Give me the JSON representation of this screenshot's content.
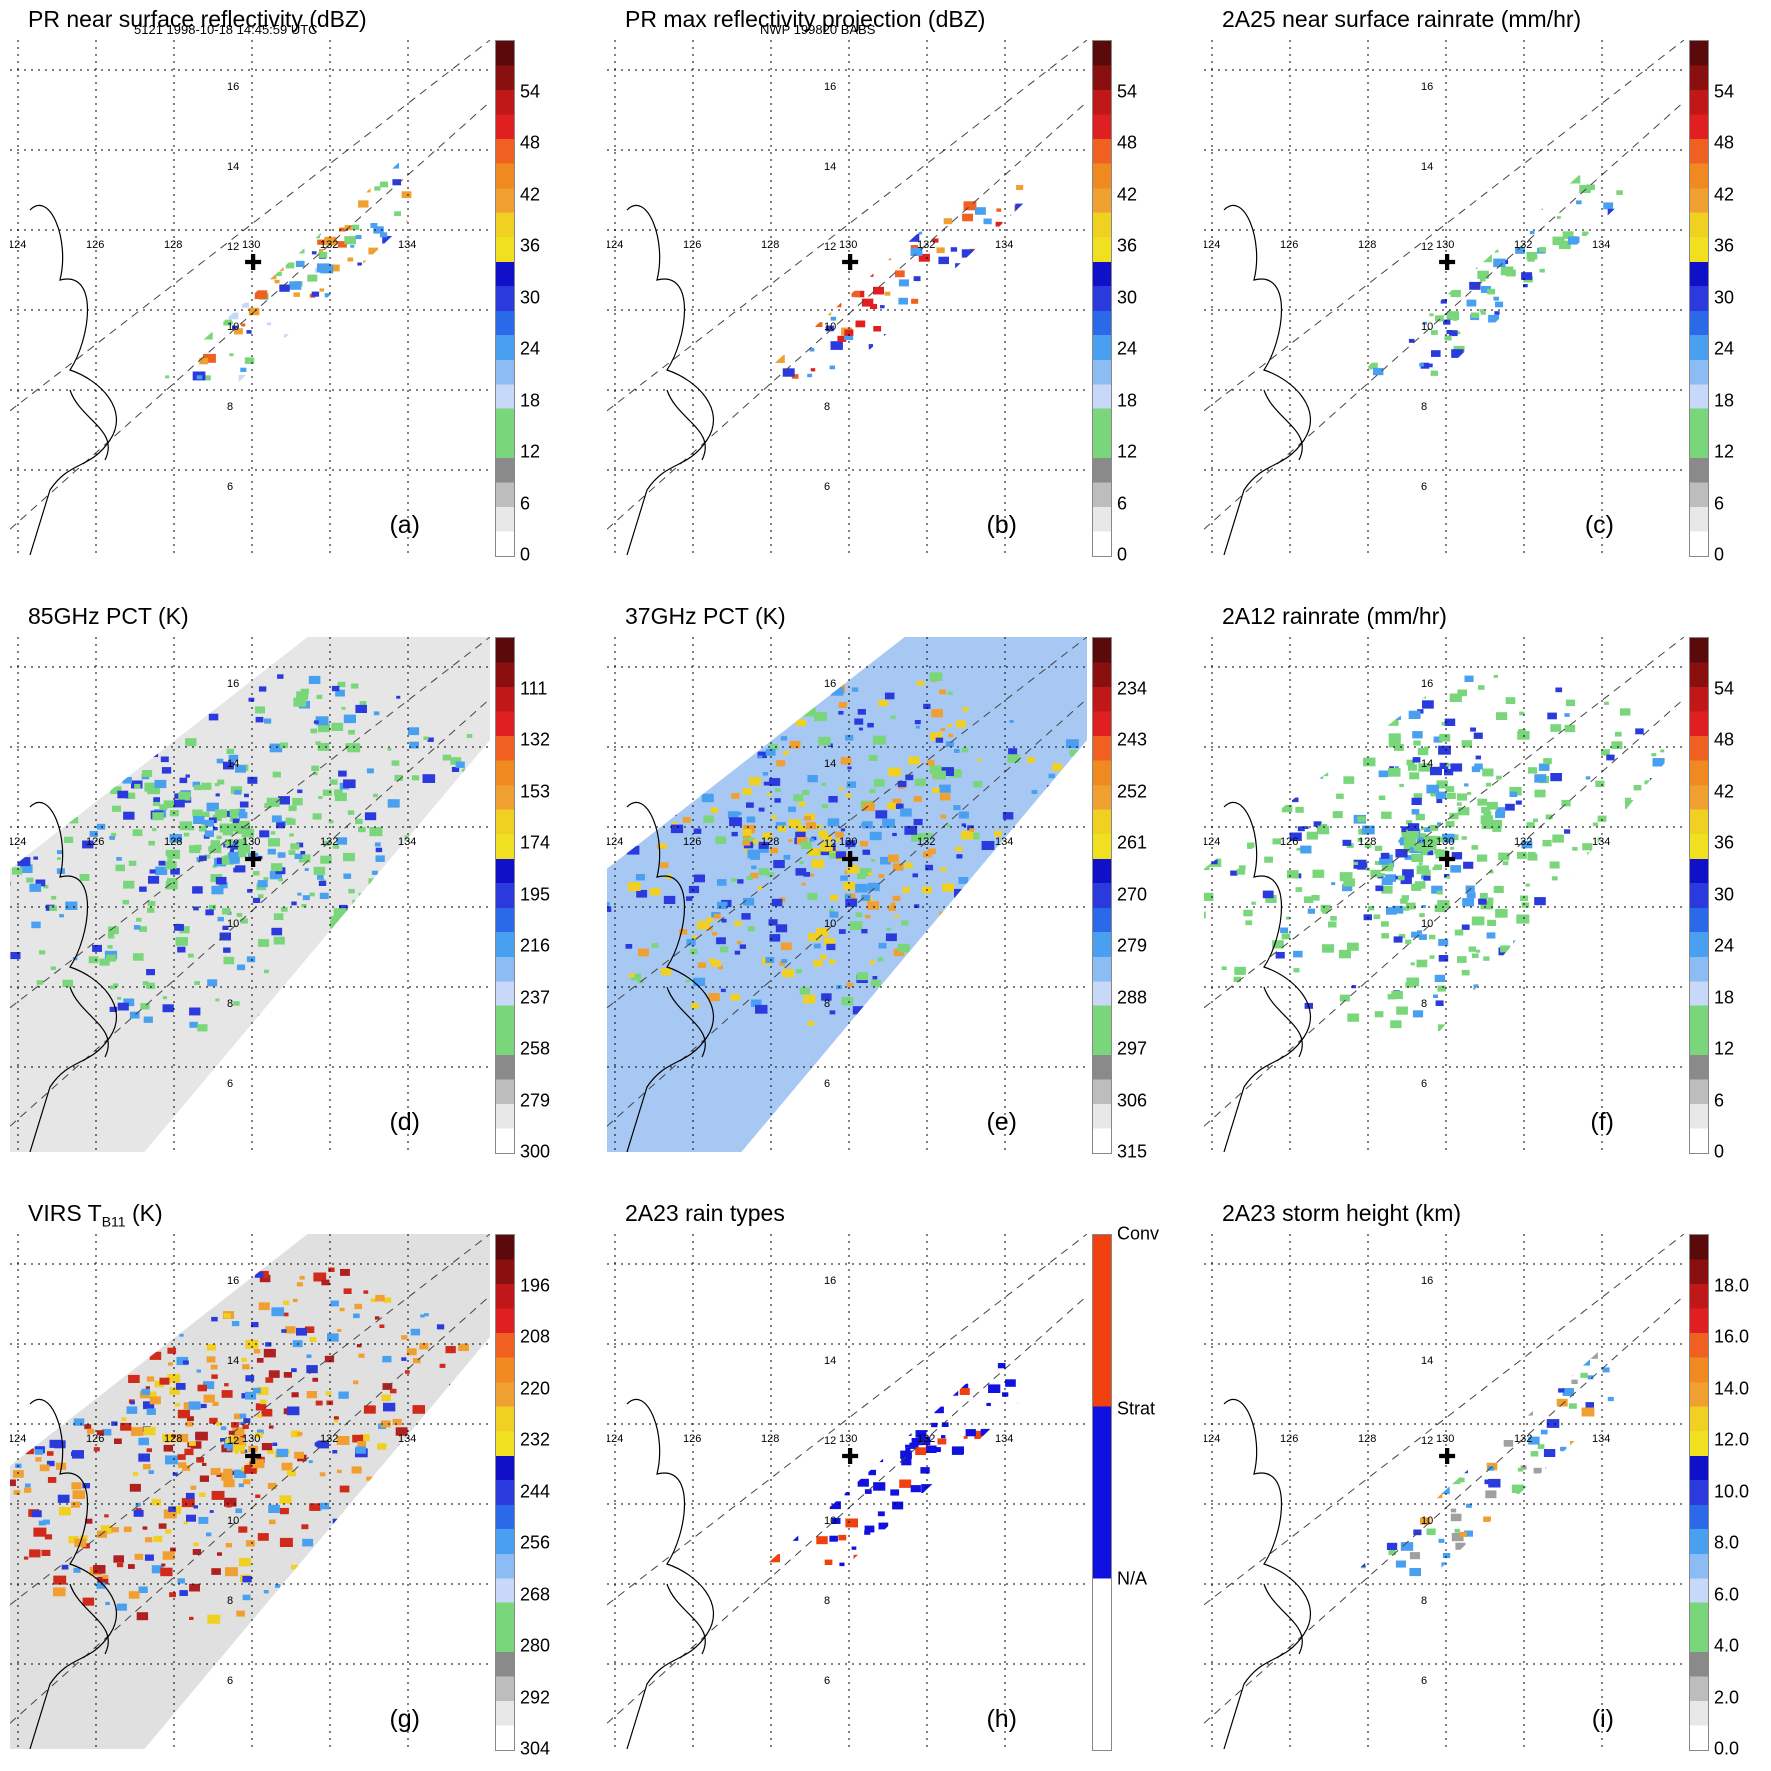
{
  "header": {
    "left": "5121 1998-10-18 14:45:59 UTC",
    "mid": "NWP 199820 BABS"
  },
  "map_ticks": {
    "lon": [
      "124",
      "126",
      "128",
      "130",
      "132",
      "134"
    ],
    "lat": [
      "6",
      "8",
      "10",
      "12",
      "14",
      "16"
    ]
  },
  "chart_data": [
    {
      "id": "a",
      "type": "heatmap",
      "title": "PR near surface reflectivity (dBZ)",
      "panel_label": "(a)",
      "colorbar": {
        "ticks": [
          "0",
          "6",
          "12",
          "18",
          "24",
          "30",
          "36",
          "42",
          "48",
          "54"
        ],
        "range": [
          0,
          60
        ]
      },
      "footprint": "narrow",
      "colors": [
        "#7ad67a",
        "#c8d8f8",
        "#4aa0f0",
        "#2a3adc",
        "#f0a030",
        "#f06020"
      ]
    },
    {
      "id": "b",
      "type": "heatmap",
      "title": "PR max reflectivity projection (dBZ)",
      "panel_label": "(b)",
      "colorbar": {
        "ticks": [
          "0",
          "6",
          "12",
          "18",
          "24",
          "30",
          "36",
          "42",
          "48",
          "54"
        ],
        "range": [
          0,
          60
        ]
      },
      "footprint": "narrow",
      "colors": [
        "#4aa0f0",
        "#2a3adc",
        "#f0a030",
        "#f06020",
        "#e02020"
      ]
    },
    {
      "id": "c",
      "type": "heatmap",
      "title": "2A25 near surface rainrate (mm/hr)",
      "panel_label": "(c)",
      "colorbar": {
        "ticks": [
          "0",
          "6",
          "12",
          "18",
          "24",
          "30",
          "36",
          "42",
          "48",
          "54"
        ],
        "range": [
          0,
          60
        ]
      },
      "footprint": "narrow",
      "colors": [
        "#7ad67a",
        "#7ad67a",
        "#7ad67a",
        "#4aa0f0",
        "#2a3adc"
      ]
    },
    {
      "id": "d",
      "type": "heatmap",
      "title": "85GHz PCT (K)",
      "panel_label": "(d)",
      "colorbar": {
        "ticks": [
          "300",
          "279",
          "258",
          "237",
          "216",
          "195",
          "174",
          "153",
          "132",
          "111"
        ],
        "range": [
          300,
          90
        ]
      },
      "footprint": "wide",
      "background": "#e6e6e6",
      "colors": [
        "#7ad67a",
        "#7ad67a",
        "#4aa0f0",
        "#2a3adc"
      ]
    },
    {
      "id": "e",
      "type": "heatmap",
      "title": "37GHz PCT (K)",
      "panel_label": "(e)",
      "colorbar": {
        "ticks": [
          "315",
          "306",
          "297",
          "288",
          "279",
          "270",
          "261",
          "252",
          "243",
          "234"
        ],
        "range": [
          315,
          225
        ]
      },
      "footprint": "wide",
      "background": "#a8c8f4",
      "colors": [
        "#7ad67a",
        "#2a3adc",
        "#4aa0f0",
        "#f0a030",
        "#f0d020"
      ]
    },
    {
      "id": "f",
      "type": "heatmap",
      "title": "2A12 rainrate (mm/hr)",
      "panel_label": "(f)",
      "colorbar": {
        "ticks": [
          "0",
          "6",
          "12",
          "18",
          "24",
          "30",
          "36",
          "42",
          "48",
          "54"
        ],
        "range": [
          0,
          60
        ]
      },
      "footprint": "wide",
      "colors": [
        "#7ad67a",
        "#7ad67a",
        "#7ad67a",
        "#4aa0f0",
        "#2a3adc"
      ]
    },
    {
      "id": "g",
      "type": "heatmap",
      "title": "VIRS T",
      "title_sub": "B11",
      "title_tail": " (K)",
      "panel_label": "(g)",
      "colorbar": {
        "ticks": [
          "304",
          "292",
          "280",
          "268",
          "256",
          "244",
          "232",
          "220",
          "208",
          "196"
        ],
        "range": [
          304,
          184
        ]
      },
      "footprint": "wide",
      "background": "#e0e0e0",
      "colors": [
        "#d02a1a",
        "#b02020",
        "#f0a030",
        "#2a3adc",
        "#4aa0f0",
        "#f0d020"
      ]
    },
    {
      "id": "h",
      "type": "heatmap",
      "title": "2A23 rain types",
      "panel_label": "(h)",
      "colorbar": {
        "ticks": [
          "N/A",
          "Strat",
          "Conv"
        ],
        "categorical": true
      },
      "footprint": "narrow",
      "colors": [
        "#1010e0",
        "#1010e0",
        "#1010e0",
        "#f04010"
      ]
    },
    {
      "id": "i",
      "type": "heatmap",
      "title": "2A23 storm height (km)",
      "panel_label": "(i)",
      "colorbar": {
        "ticks": [
          "0.0",
          "2.0",
          "4.0",
          "6.0",
          "8.0",
          "10.0",
          "12.0",
          "14.0",
          "16.0",
          "18.0"
        ],
        "range": [
          0,
          20
        ]
      },
      "footprint": "narrow",
      "colors": [
        "#7ad67a",
        "#a0a0a0",
        "#4aa0f0",
        "#2a3adc",
        "#f0a030"
      ]
    }
  ],
  "colormaps": {
    "standard": [
      "#ffffff",
      "#e8e8e8",
      "#bdbdbd",
      "#8a8a8a",
      "#7ad67a",
      "#7ad67a",
      "#c8d8f8",
      "#8cbcf4",
      "#4aa0f0",
      "#2a6ae8",
      "#2a3adc",
      "#1010c8",
      "#f0e020",
      "#f0d020",
      "#f0a030",
      "#f08a20",
      "#f06020",
      "#e02020",
      "#c01818",
      "#8a1010",
      "#5a0a0a"
    ],
    "categorical": [
      "#ffffff",
      "#ffffff",
      "#1010e0",
      "#1010e0",
      "#f04010",
      "#f04010"
    ]
  }
}
